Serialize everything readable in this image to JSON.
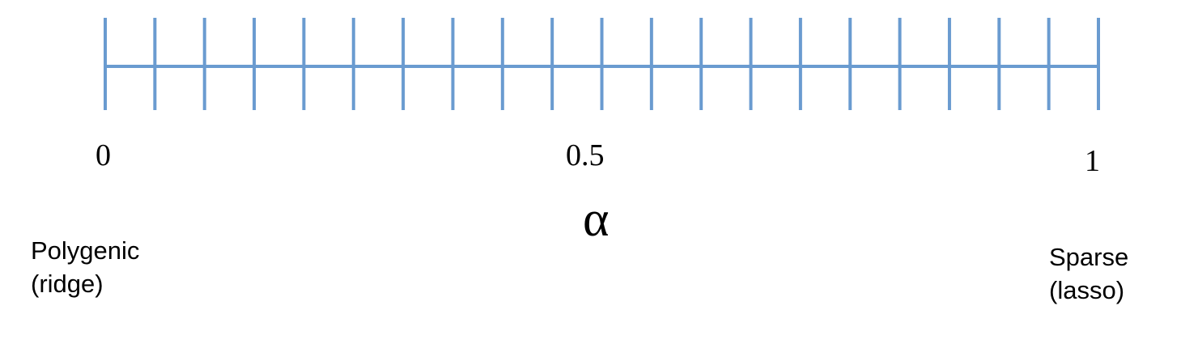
{
  "diagram": {
    "ticks": {
      "min": 0,
      "max": 1,
      "count": 21
    },
    "tick_labels": [
      "0",
      "0.5",
      "1"
    ],
    "axis_symbol": "α",
    "left_end": {
      "line1": "Polygenic",
      "line2": "(ridge)"
    },
    "right_end": {
      "line1": "Sparse",
      "line2": "(lasso)"
    },
    "line_color": "#6a9bd0"
  }
}
